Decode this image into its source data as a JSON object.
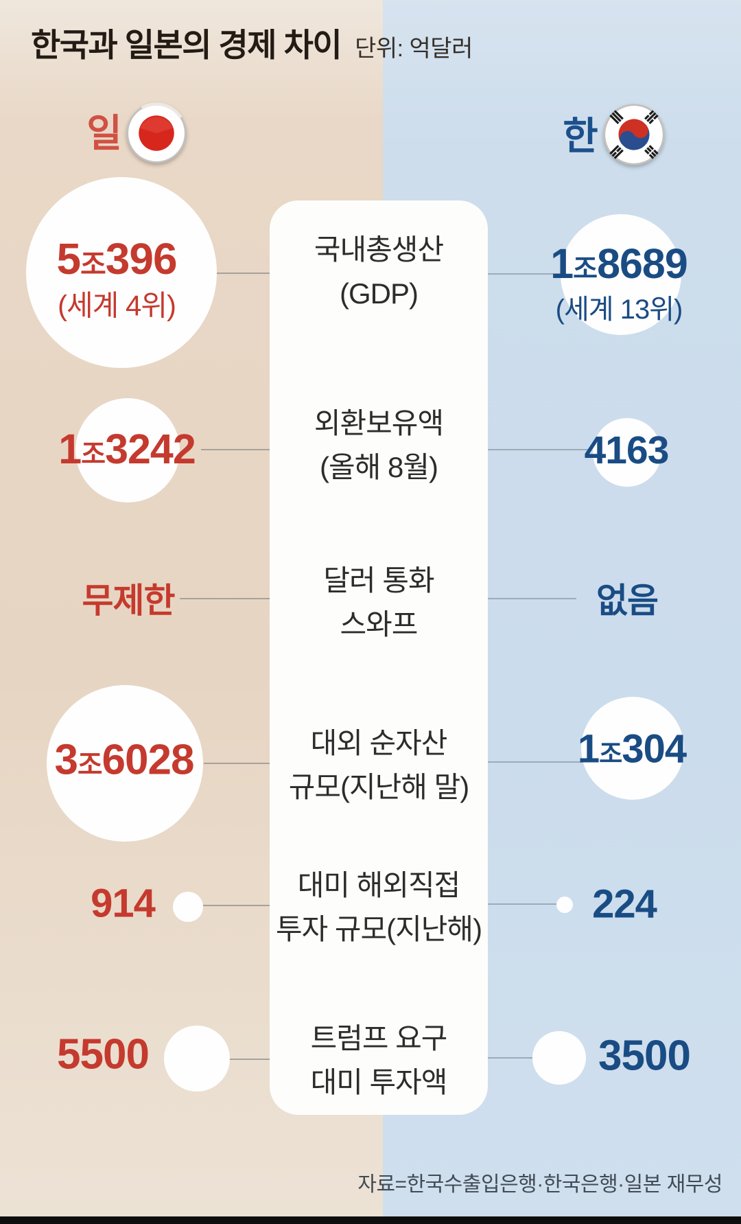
{
  "title": "한국과 일본의 경제 차이",
  "unit_label": "단위: 억달러",
  "legend": {
    "japan_label": "일",
    "korea_label": "한",
    "japan_flag_icon": "japan-flag-icon",
    "korea_flag_icon": "korea-flag-icon"
  },
  "rows": [
    {
      "label_line1": "국내총생산",
      "label_line2": "(GDP)",
      "japan": {
        "value": "5조396",
        "note": "(세계 4위)"
      },
      "korea": {
        "value": "1조8689",
        "note": "(세계 13위)"
      }
    },
    {
      "label_line1": "외환보유액",
      "label_line2": "(올해 8월)",
      "japan": {
        "value": "1조3242"
      },
      "korea": {
        "value": "4163"
      }
    },
    {
      "label_line1": "달러 통화",
      "label_line2": "스와프",
      "japan": {
        "value": "무제한"
      },
      "korea": {
        "value": "없음"
      }
    },
    {
      "label_line1": "대외 순자산",
      "label_line2": "규모(지난해 말)",
      "japan": {
        "value": "3조6028"
      },
      "korea": {
        "value": "1조304"
      }
    },
    {
      "label_line1": "대미 해외직접",
      "label_line2": "투자 규모(지난해)",
      "japan": {
        "value": "914"
      },
      "korea": {
        "value": "224"
      }
    },
    {
      "label_line1": "트럼프 요구",
      "label_line2": "대미 투자액",
      "japan": {
        "value": "5500"
      },
      "korea": {
        "value": "3500"
      }
    }
  ],
  "source": "자료=한국수출입은행·한국은행·일본 재무성",
  "colors": {
    "japan_accent": "#c53a2e",
    "korea_accent": "#1a4c84",
    "left_background": "#e7d5c3",
    "right_background": "#cbdcec",
    "panel_background": "#fdfdfb"
  },
  "chart_data": {
    "type": "table",
    "title": "한국과 일본의 경제 차이",
    "unit": "억달러",
    "categories": [
      "국내총생산 (GDP)",
      "외환보유액 (올해 8월)",
      "달러 통화 스와프",
      "대외 순자산 규모(지난해 말)",
      "대미 해외직접 투자 규모(지난해)",
      "트럼프 요구 대미 투자액"
    ],
    "series": [
      {
        "name": "일본",
        "display_values": [
          "5조396",
          "1조3242",
          "무제한",
          "3조6028",
          "914",
          "5500"
        ],
        "numeric_values_100m_usd": [
          50396,
          13242,
          null,
          36028,
          914,
          5500
        ],
        "notes": [
          "세계 4위",
          null,
          null,
          null,
          null,
          null
        ]
      },
      {
        "name": "한국",
        "display_values": [
          "1조8689",
          "4163",
          "없음",
          "1조304",
          "224",
          "3500"
        ],
        "numeric_values_100m_usd": [
          18689,
          4163,
          null,
          10304,
          224,
          3500
        ],
        "notes": [
          "세계 13위",
          null,
          null,
          null,
          null,
          null
        ]
      }
    ],
    "layout": "paired bubble comparison, Japan left / Korea right, bubble area proportional to value",
    "source": "자료=한국수출입은행·한국은행·일본 재무성"
  }
}
